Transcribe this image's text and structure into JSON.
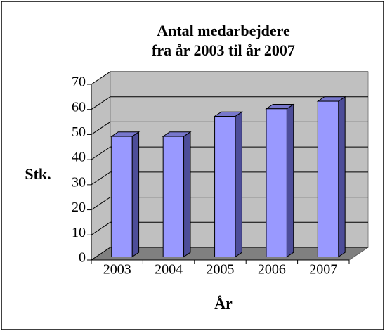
{
  "chart_data": {
    "type": "bar3d",
    "title": [
      "Antal medarbejdere",
      "fra år 2003 til år 2007"
    ],
    "x_label": "År",
    "y_label": "Stk.",
    "categories": [
      "2003",
      "2004",
      "2005",
      "2006",
      "2007"
    ],
    "values": [
      48,
      48,
      56,
      59,
      62
    ],
    "color": "#9999ff",
    "ylim": [
      0,
      70
    ],
    "yticks": [
      0,
      10,
      20,
      30,
      40,
      50,
      60,
      70
    ],
    "grid": true
  }
}
